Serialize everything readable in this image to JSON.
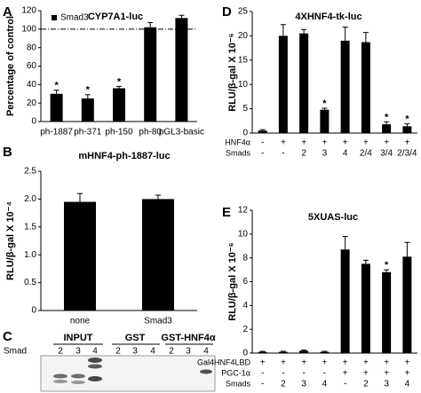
{
  "chart_data": [
    {
      "type": "bar",
      "label": "A",
      "title": "CYP7A1-luc",
      "y_label": "Percentage of control",
      "categories": [
        "ph-1887",
        "ph-371",
        "ph-150",
        "ph-80",
        "pGL3-basic"
      ],
      "series": [
        {
          "name": "Smad3",
          "color": "#000000",
          "values": [
            30,
            25,
            36,
            102,
            112
          ],
          "errors": [
            4,
            4,
            2,
            5,
            3
          ]
        }
      ],
      "asterisks": [
        "*",
        "*",
        "*",
        null,
        null
      ],
      "reference_line": 100,
      "ylim": [
        0,
        120
      ],
      "yticks": [
        0,
        20,
        40,
        60,
        80,
        100,
        120
      ]
    },
    {
      "type": "bar",
      "label": "B",
      "title": "mHNF4-ph-1887-luc",
      "y_label": "RLU/β-gal X 10⁻⁴",
      "categories": [
        "none",
        "Smad3"
      ],
      "color": "#000000",
      "values": [
        1.95,
        2.0
      ],
      "errors": [
        0.15,
        0.07
      ],
      "ylim": [
        0,
        2.5
      ],
      "yticks": [
        0,
        0.5,
        {
          "value": 1,
          "label": "1.0"
        },
        1.5,
        {
          "value": 2,
          "label": "2.0"
        },
        2.5
      ]
    },
    {
      "type": "bar",
      "label": "D",
      "title": "4XHNF4-tk-luc",
      "y_label": "RLU/β-gal X 10⁻⁶",
      "category_rows": [
        {
          "name": "HNF4α",
          "labels": [
            "-",
            "+",
            "+",
            "+",
            "+",
            "+",
            "+",
            "+"
          ]
        },
        {
          "name": "Smads",
          "labels": [
            "-",
            "-",
            "2",
            "3",
            "4",
            "2/4",
            "3/4",
            "2/3/4"
          ]
        }
      ],
      "color": "#000000",
      "values": [
        0.5,
        20,
        20.5,
        4.8,
        19,
        18.7,
        1.8,
        1.4
      ],
      "errors": [
        0.2,
        2.3,
        0.8,
        0.3,
        2.8,
        2,
        0.5,
        0.5
      ],
      "asterisks": [
        null,
        null,
        null,
        "*",
        null,
        null,
        "*",
        "*"
      ],
      "ylim": [
        0,
        25
      ],
      "yticks": [
        0,
        5,
        10,
        15,
        20,
        25
      ]
    },
    {
      "type": "bar",
      "label": "E",
      "title": "5XUAS-luc",
      "y_label": "RLU/β-gal X 10⁻⁶",
      "category_rows": [
        {
          "name": "Gal4HNF4LBD",
          "labels": [
            "+",
            "+",
            "+",
            "+",
            "+",
            "+",
            "+",
            "+"
          ]
        },
        {
          "name": "PGC-1α",
          "labels": [
            "-",
            "-",
            "-",
            "-",
            "+",
            "+",
            "+",
            "+"
          ]
        },
        {
          "name": "Smads",
          "labels": [
            "-",
            "2",
            "3",
            "4",
            "-",
            "2",
            "3",
            "4"
          ]
        }
      ],
      "color": "#000000",
      "values": [
        0.1,
        0.1,
        0.2,
        0.1,
        8.7,
        7.5,
        6.8,
        8.1
      ],
      "errors": [
        0.05,
        0.05,
        0.05,
        0.05,
        1.1,
        0.3,
        0.2,
        1.2
      ],
      "asterisks": [
        null,
        null,
        null,
        null,
        null,
        null,
        "*",
        null
      ],
      "ylim": [
        0,
        12
      ],
      "yticks": [
        0,
        2,
        4,
        6,
        8,
        10,
        12
      ]
    }
  ],
  "panel_c": {
    "label": "C",
    "row_label": "Smad",
    "groups": [
      "INPUT",
      "GST",
      "GST-HNF4α"
    ],
    "lanes": [
      "2",
      "3",
      "4",
      "2",
      "3",
      "4",
      "2",
      "3",
      "4"
    ]
  }
}
